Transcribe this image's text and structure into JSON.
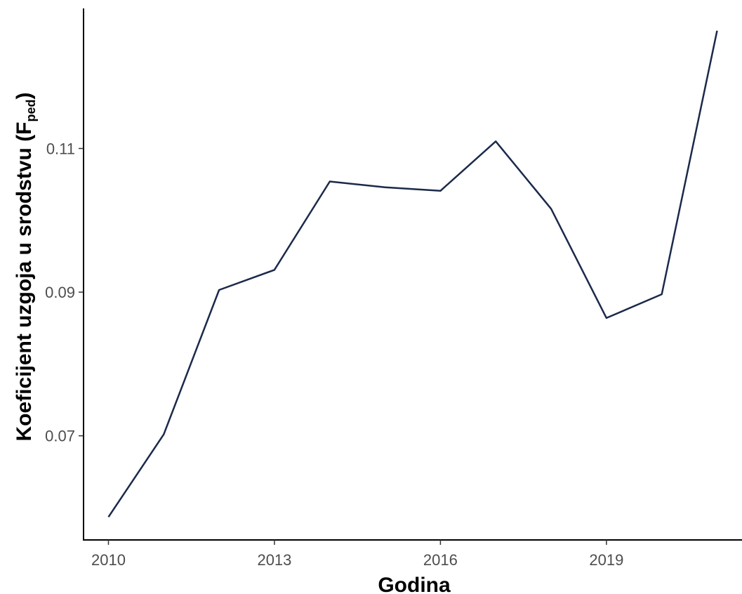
{
  "chart_data": {
    "type": "line",
    "xlabel": "Godina",
    "ylabel_main": "Koeficijent uzgoja u srodstvu (F",
    "ylabel_sub": "ped",
    "ylabel_close": ")",
    "xlim": [
      2009.55,
      2021.45
    ],
    "ylim": [
      0.0555,
      0.1295
    ],
    "x_ticks": [
      2010,
      2013,
      2016,
      2019
    ],
    "x_tick_labels": [
      "2010",
      "2013",
      "2016",
      "2019"
    ],
    "y_ticks": [
      0.07,
      0.09,
      0.11
    ],
    "y_tick_labels": [
      "0.07",
      "0.09",
      "0.11"
    ],
    "grid": false,
    "line_color": "#1b2a4a",
    "series": [
      {
        "x": [
          2010,
          2011,
          2012,
          2013,
          2014,
          2015,
          2016,
          2017,
          2018,
          2019,
          2020,
          2021
        ],
        "y": [
          0.0587,
          0.0702,
          0.0903,
          0.0931,
          0.1054,
          0.1046,
          0.1041,
          0.111,
          0.1016,
          0.0864,
          0.0897,
          0.1264
        ]
      }
    ]
  }
}
